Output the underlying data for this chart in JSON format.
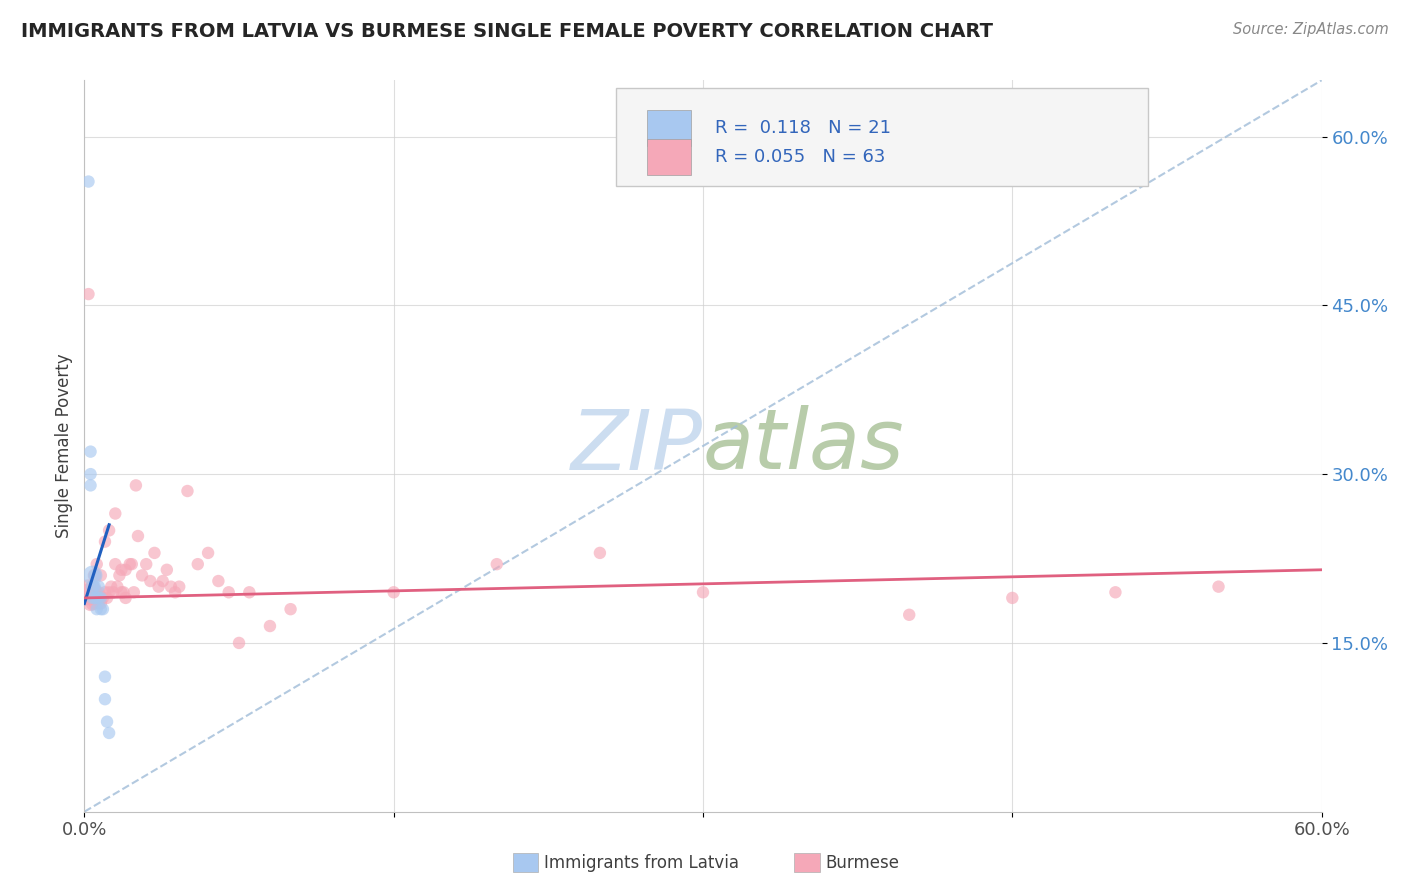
{
  "title": "IMMIGRANTS FROM LATVIA VS BURMESE SINGLE FEMALE POVERTY CORRELATION CHART",
  "source": "Source: ZipAtlas.com",
  "ylabel": "Single Female Poverty",
  "R_latvia": 0.118,
  "N_latvia": 21,
  "R_burmese": 0.055,
  "N_burmese": 63,
  "xlim": [
    0.0,
    0.6
  ],
  "ylim": [
    0.0,
    0.65
  ],
  "yticks": [
    0.15,
    0.3,
    0.45,
    0.6
  ],
  "ytick_labels": [
    "15.0%",
    "30.0%",
    "45.0%",
    "60.0%"
  ],
  "color_latvia": "#a8c8f0",
  "color_burmese": "#f5a8b8",
  "trendline_latvia_color": "#2060c0",
  "trendline_burmese_color": "#e06080",
  "watermark_zip_color": "#ccddf0",
  "watermark_atlas_color": "#b8ccaa",
  "latvia_x": [
    0.002,
    0.003,
    0.003,
    0.004,
    0.004,
    0.004,
    0.005,
    0.005,
    0.005,
    0.006,
    0.006,
    0.007,
    0.007,
    0.008,
    0.008,
    0.009,
    0.01,
    0.01,
    0.011,
    0.012,
    0.003
  ],
  "latvia_y": [
    0.56,
    0.3,
    0.29,
    0.21,
    0.2,
    0.19,
    0.21,
    0.2,
    0.19,
    0.19,
    0.18,
    0.2,
    0.19,
    0.19,
    0.18,
    0.18,
    0.12,
    0.1,
    0.08,
    0.07,
    0.32
  ],
  "latvia_size": [
    80,
    80,
    80,
    200,
    100,
    80,
    80,
    80,
    80,
    80,
    80,
    80,
    80,
    80,
    80,
    80,
    80,
    80,
    80,
    80,
    80
  ],
  "burmese_x": [
    0.002,
    0.003,
    0.003,
    0.004,
    0.004,
    0.005,
    0.005,
    0.006,
    0.006,
    0.007,
    0.007,
    0.008,
    0.008,
    0.009,
    0.01,
    0.01,
    0.011,
    0.012,
    0.012,
    0.013,
    0.014,
    0.015,
    0.015,
    0.016,
    0.017,
    0.018,
    0.018,
    0.019,
    0.02,
    0.02,
    0.022,
    0.023,
    0.024,
    0.025,
    0.026,
    0.028,
    0.03,
    0.032,
    0.034,
    0.036,
    0.038,
    0.04,
    0.042,
    0.044,
    0.046,
    0.05,
    0.055,
    0.06,
    0.065,
    0.07,
    0.075,
    0.08,
    0.09,
    0.1,
    0.15,
    0.2,
    0.25,
    0.3,
    0.4,
    0.45,
    0.5,
    0.55,
    0.002
  ],
  "burmese_y": [
    0.195,
    0.195,
    0.185,
    0.2,
    0.185,
    0.21,
    0.185,
    0.22,
    0.195,
    0.195,
    0.185,
    0.21,
    0.185,
    0.19,
    0.24,
    0.195,
    0.19,
    0.25,
    0.195,
    0.2,
    0.195,
    0.265,
    0.22,
    0.2,
    0.21,
    0.215,
    0.195,
    0.195,
    0.215,
    0.19,
    0.22,
    0.22,
    0.195,
    0.29,
    0.245,
    0.21,
    0.22,
    0.205,
    0.23,
    0.2,
    0.205,
    0.215,
    0.2,
    0.195,
    0.2,
    0.285,
    0.22,
    0.23,
    0.205,
    0.195,
    0.15,
    0.195,
    0.165,
    0.18,
    0.195,
    0.22,
    0.23,
    0.195,
    0.175,
    0.19,
    0.195,
    0.2,
    0.46
  ],
  "burmese_size": [
    350,
    200,
    120,
    100,
    100,
    100,
    80,
    80,
    80,
    80,
    80,
    80,
    80,
    80,
    80,
    80,
    80,
    80,
    80,
    80,
    80,
    80,
    80,
    80,
    80,
    80,
    80,
    80,
    80,
    80,
    80,
    80,
    80,
    80,
    80,
    80,
    80,
    80,
    80,
    80,
    80,
    80,
    80,
    80,
    80,
    80,
    80,
    80,
    80,
    80,
    80,
    80,
    80,
    80,
    80,
    80,
    80,
    80,
    80,
    80,
    80,
    80,
    80
  ],
  "latvia_trend_x": [
    0.0,
    0.012
  ],
  "latvia_trend_y": [
    0.185,
    0.255
  ],
  "burmese_trend_x": [
    0.0,
    0.6
  ],
  "burmese_trend_y": [
    0.19,
    0.215
  ]
}
